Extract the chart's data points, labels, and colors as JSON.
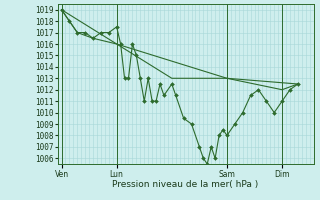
{
  "bg_color": "#ceeeed",
  "grid_color": "#a8d8d8",
  "line_color": "#2d6b2d",
  "marker_color": "#2d6b2d",
  "ylabel_vals": [
    1006,
    1007,
    1008,
    1009,
    1010,
    1011,
    1012,
    1013,
    1014,
    1015,
    1016,
    1017,
    1018,
    1019
  ],
  "ylim": [
    1005.5,
    1019.5
  ],
  "xlabel": "Pression niveau de la mer( hPa )",
  "day_labels": [
    "Ven",
    "Lun",
    "Sam",
    "Dim"
  ],
  "day_positions": [
    0,
    14,
    42,
    56
  ],
  "xlim": [
    -1,
    64
  ],
  "series1": [
    [
      0,
      1019
    ],
    [
      2,
      1018
    ],
    [
      4,
      1017
    ],
    [
      6,
      1017
    ],
    [
      8,
      1016.5
    ],
    [
      10,
      1017
    ],
    [
      12,
      1017
    ],
    [
      14,
      1017.5
    ],
    [
      15,
      1016
    ],
    [
      16,
      1013
    ],
    [
      17,
      1013
    ],
    [
      18,
      1016
    ],
    [
      19,
      1015
    ],
    [
      20,
      1013
    ],
    [
      21,
      1011
    ],
    [
      22,
      1013
    ],
    [
      23,
      1011
    ],
    [
      24,
      1011
    ],
    [
      25,
      1012.5
    ],
    [
      26,
      1011.5
    ],
    [
      28,
      1012.5
    ],
    [
      29,
      1011.5
    ],
    [
      31,
      1009.5
    ],
    [
      33,
      1009
    ],
    [
      35,
      1007
    ],
    [
      36,
      1006
    ],
    [
      37,
      1005.5
    ],
    [
      38,
      1007
    ],
    [
      39,
      1006
    ],
    [
      40,
      1008
    ],
    [
      41,
      1008.5
    ],
    [
      42,
      1008
    ],
    [
      44,
      1009
    ],
    [
      46,
      1010
    ],
    [
      48,
      1011.5
    ],
    [
      50,
      1012
    ],
    [
      52,
      1011
    ],
    [
      54,
      1010
    ],
    [
      56,
      1011
    ],
    [
      58,
      1012
    ],
    [
      60,
      1012.5
    ]
  ],
  "series2": [
    [
      0,
      1019
    ],
    [
      4,
      1017
    ],
    [
      8,
      1016.5
    ],
    [
      14,
      1016
    ],
    [
      28,
      1013
    ],
    [
      42,
      1013
    ],
    [
      56,
      1012
    ],
    [
      60,
      1012.5
    ]
  ],
  "series3": [
    [
      0,
      1019
    ],
    [
      14,
      1016
    ],
    [
      42,
      1013
    ],
    [
      60,
      1012.5
    ]
  ]
}
